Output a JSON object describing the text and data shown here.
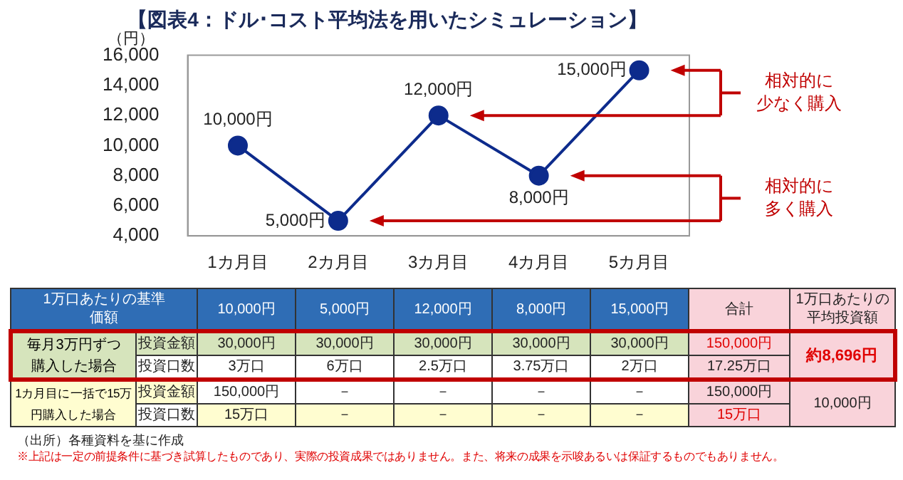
{
  "chart_data": [
    {
      "type": "line",
      "title": "【図表4：ドル･コスト平均法を用いたシミュレーション】",
      "ylabel": "（円）",
      "categories": [
        "1カ月目",
        "2カ月目",
        "3カ月目",
        "4カ月目",
        "5カ月目"
      ],
      "series": [
        {
          "color": "#0d2b8c",
          "values": [
            10000,
            5000,
            12000,
            8000,
            15000
          ],
          "value_labels": [
            "10,000円",
            "5,000円",
            "12,000円",
            "8,000円",
            "15,000円"
          ]
        }
      ],
      "ylim": [
        4000,
        16000
      ],
      "yticks": [
        {
          "value": 4000,
          "label": "4,000"
        },
        {
          "value": 6000,
          "label": "6,000"
        },
        {
          "value": 8000,
          "label": "8,000"
        },
        {
          "value": 10000,
          "label": "10,000"
        },
        {
          "value": 12000,
          "label": "12,000"
        },
        {
          "value": 14000,
          "label": "14,000"
        },
        {
          "value": 16000,
          "label": "16,000"
        }
      ],
      "marker": "circle",
      "line_style": "solid",
      "grid": false,
      "legend": false,
      "annotations": [
        "相対的に少なく購入",
        "相対的に多く購入"
      ]
    },
    {
      "type": "other",
      "categories": [
        "1万口あたりの基準価額",
        "10,000円",
        "5,000円",
        "12,000円",
        "8,000円",
        "15,000円",
        "合計",
        "1万口あたりの平均投資額"
      ],
      "y_categories": [
        "毎月3万円ずつ購入した場合",
        "1カ月目に一括で15万円購入した場合"
      ],
      "cell_labels": [
        [
          "投資金額",
          "30,000円",
          "30,000円",
          "30,000円",
          "30,000円",
          "30,000円",
          "150,000円",
          "約8,696円"
        ],
        [
          "投資口数",
          "3万口",
          "6万口",
          "2.5万口",
          "3.75万口",
          "2万口",
          "17.25万口",
          null
        ],
        [
          "投資金額",
          "150,000円",
          "－",
          "－",
          "－",
          "－",
          "150,000円",
          "10,000円"
        ],
        [
          "投資口数",
          "15万口",
          "－",
          "－",
          "－",
          "－",
          "15万口",
          null
        ]
      ],
      "annotations": [
        "（出所）各種資料を基に作成",
        "※上記は一定の前提条件に基づき試算したものであり、実際の投資成果ではありません。また、将来の成果を示唆あるいは保証するものでもありません。"
      ]
    }
  ]
}
